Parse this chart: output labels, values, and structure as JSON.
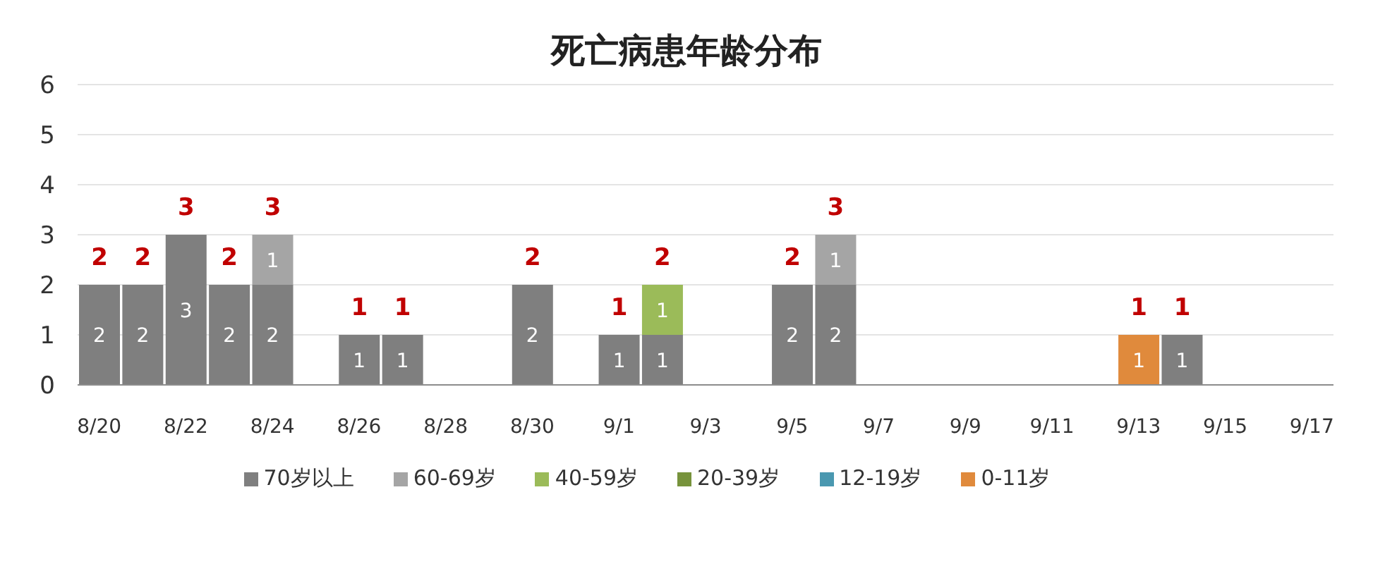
{
  "chart_data": {
    "type": "bar",
    "title": "死亡病患年龄分布",
    "categories": [
      "8/20",
      null,
      "8/22",
      null,
      "8/24",
      null,
      "8/26",
      null,
      "8/28",
      null,
      "8/30",
      null,
      "9/1",
      null,
      "9/3",
      null,
      "9/5",
      null,
      "9/7",
      null,
      "9/9",
      null,
      "9/11",
      null,
      "9/13",
      null,
      "9/15",
      null,
      "9/17"
    ],
    "series": [
      {
        "name": "70岁以上",
        "color": "#7f7f7f",
        "values": [
          2,
          2,
          3,
          2,
          2,
          null,
          1,
          1,
          null,
          null,
          2,
          null,
          1,
          1,
          null,
          null,
          2,
          2,
          null,
          null,
          null,
          null,
          null,
          null,
          null,
          1,
          null,
          null,
          null
        ]
      },
      {
        "name": "60-69岁",
        "color": "#a5a5a5",
        "values": [
          null,
          null,
          null,
          null,
          1,
          null,
          null,
          null,
          null,
          null,
          null,
          null,
          null,
          null,
          null,
          null,
          null,
          1,
          null,
          null,
          null,
          null,
          null,
          null,
          null,
          null,
          null,
          null,
          null
        ]
      },
      {
        "name": "40-59岁",
        "color": "#9bbb59",
        "values": [
          null,
          null,
          null,
          null,
          null,
          null,
          null,
          null,
          null,
          null,
          null,
          null,
          null,
          1,
          null,
          null,
          null,
          null,
          null,
          null,
          null,
          null,
          null,
          null,
          null,
          null,
          null,
          null,
          null
        ]
      },
      {
        "name": "20-39岁",
        "color": "#77933c",
        "values": [
          null,
          null,
          null,
          null,
          null,
          null,
          null,
          null,
          null,
          null,
          null,
          null,
          null,
          null,
          null,
          null,
          null,
          null,
          null,
          null,
          null,
          null,
          null,
          null,
          null,
          null,
          null,
          null,
          null
        ]
      },
      {
        "name": "12-19岁",
        "color": "#4a98b0",
        "values": [
          null,
          null,
          null,
          null,
          null,
          null,
          null,
          null,
          null,
          null,
          null,
          null,
          null,
          null,
          null,
          null,
          null,
          null,
          null,
          null,
          null,
          null,
          null,
          null,
          null,
          null,
          null,
          null,
          null
        ]
      },
      {
        "name": "0-11岁",
        "color": "#e08a3c",
        "values": [
          null,
          null,
          null,
          null,
          null,
          null,
          null,
          null,
          null,
          null,
          null,
          null,
          null,
          null,
          null,
          null,
          null,
          null,
          null,
          null,
          null,
          null,
          null,
          null,
          1,
          null,
          null,
          null,
          null
        ]
      }
    ],
    "stacked": true,
    "data_labels": true,
    "totals": [
      "2",
      "2",
      "3",
      "2",
      "3",
      null,
      "1",
      "1",
      null,
      null,
      "2",
      null,
      "1",
      "2",
      null,
      null,
      "2",
      "3",
      null,
      null,
      null,
      null,
      null,
      null,
      "1",
      "1",
      null,
      null,
      null
    ],
    "ylim": [
      0,
      6
    ],
    "yticks": [
      0,
      1,
      2,
      3,
      4,
      5,
      6
    ],
    "grid": "y",
    "legend": "bottom"
  }
}
